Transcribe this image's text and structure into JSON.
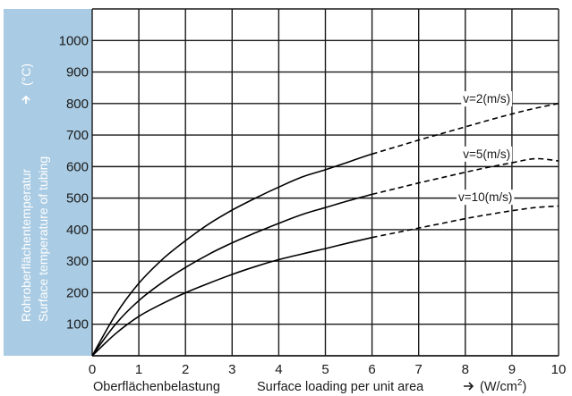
{
  "chart_data": {
    "type": "line",
    "xlim": [
      0,
      10
    ],
    "ylim": [
      0,
      1100
    ],
    "x_ticks": [
      "0",
      "1",
      "2",
      "3",
      "4",
      "5",
      "6",
      "7",
      "8",
      "9",
      "10"
    ],
    "y_ticks": [
      "100",
      "200",
      "300",
      "400",
      "500",
      "600",
      "700",
      "800",
      "900",
      "1000"
    ],
    "grid": true,
    "xlabel_de": "Oberflächenbelastung",
    "xlabel_en": "Surface loading per unit area",
    "xlabel_unit": "(W/cm",
    "xlabel_unit_sup": "2",
    "xlabel_unit_close": ")",
    "ylabel_de": "Rohroberflächentemperatur",
    "ylabel_en": "Surface temperature of tubing",
    "ylabel_unit": "(°C)",
    "ylabel_panel_color": "#a9cbe3",
    "solid_until_x": 6,
    "series": [
      {
        "name": "v=2(m/s)",
        "label_at": [
          7.95,
          802
        ],
        "x": [
          0,
          0.5,
          1,
          1.5,
          2,
          2.5,
          3,
          3.5,
          4,
          4.5,
          5,
          5.5,
          6,
          6.5,
          7,
          7.5,
          8,
          8.5,
          9,
          9.5,
          10
        ],
        "y": [
          0,
          130,
          230,
          305,
          365,
          418,
          462,
          500,
          535,
          567,
          590,
          615,
          640,
          662,
          684,
          705,
          726,
          747,
          767,
          785,
          800
        ]
      },
      {
        "name": "v=5(m/s)",
        "label_at": [
          7.95,
          627
        ],
        "x": [
          0,
          0.5,
          1,
          1.5,
          2,
          2.5,
          3,
          3.5,
          4,
          4.5,
          5,
          5.5,
          6,
          6.5,
          7,
          7.5,
          8,
          8.5,
          9,
          9.5,
          10
        ],
        "y": [
          0,
          100,
          175,
          232,
          280,
          322,
          358,
          390,
          420,
          448,
          470,
          492,
          512,
          530,
          548,
          565,
          582,
          598,
          612,
          625,
          618
        ]
      },
      {
        "name": "v=10(m/s)",
        "label_at": [
          7.85,
          490
        ],
        "x": [
          0,
          0.5,
          1,
          1.5,
          2,
          2.5,
          3,
          3.5,
          4,
          4.5,
          5,
          5.5,
          6,
          6.5,
          7,
          7.5,
          8,
          8.5,
          9,
          9.5,
          10
        ],
        "y": [
          0,
          70,
          125,
          165,
          200,
          230,
          258,
          283,
          305,
          323,
          340,
          358,
          375,
          390,
          405,
          420,
          435,
          448,
          460,
          470,
          475
        ]
      }
    ]
  }
}
